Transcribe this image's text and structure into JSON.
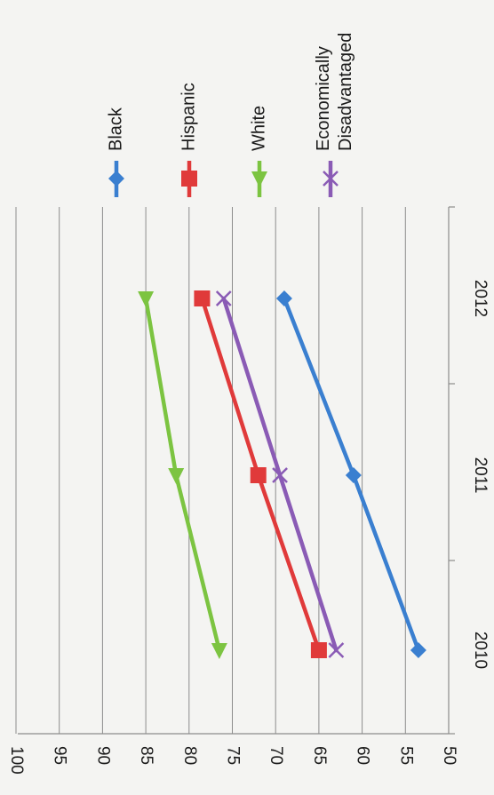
{
  "chart_data": {
    "type": "line",
    "categories": [
      "2010",
      "2011",
      "2012"
    ],
    "ylim": [
      50,
      100
    ],
    "yticks": [
      "50",
      "55",
      "60",
      "65",
      "70",
      "75",
      "80",
      "85",
      "90",
      "95",
      "100"
    ],
    "grid": true,
    "legend_position": "right",
    "orientation": "rotated-90-clockwise",
    "series": [
      {
        "name": "Black",
        "values": [
          53.5,
          61,
          69
        ],
        "color": "#3a7fd0",
        "marker": "diamond"
      },
      {
        "name": "Hispanic",
        "values": [
          65,
          72,
          78.5
        ],
        "color": "#e03a3a",
        "marker": "square"
      },
      {
        "name": "White",
        "values": [
          76.5,
          81.5,
          85
        ],
        "color": "#7cc441",
        "marker": "triangle"
      },
      {
        "name": "Economically Disadvantaged",
        "values": [
          63,
          69.5,
          76
        ],
        "color": "#8a5bb5",
        "marker": "x"
      }
    ]
  }
}
